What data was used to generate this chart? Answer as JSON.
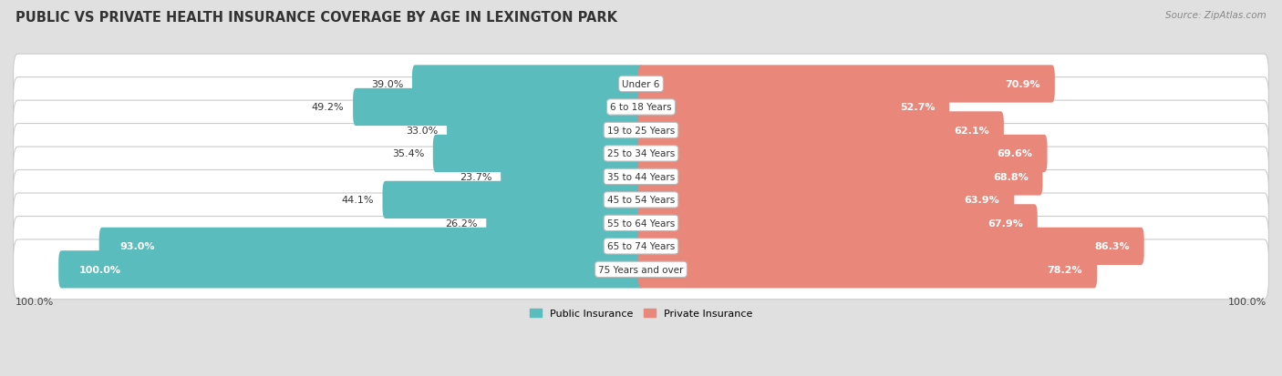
{
  "title": "PUBLIC VS PRIVATE HEALTH INSURANCE COVERAGE BY AGE IN LEXINGTON PARK",
  "source": "Source: ZipAtlas.com",
  "categories": [
    "Under 6",
    "6 to 18 Years",
    "19 to 25 Years",
    "25 to 34 Years",
    "35 to 44 Years",
    "45 to 54 Years",
    "55 to 64 Years",
    "65 to 74 Years",
    "75 Years and over"
  ],
  "public": [
    39.0,
    49.2,
    33.0,
    35.4,
    23.7,
    44.1,
    26.2,
    93.0,
    100.0
  ],
  "private": [
    70.9,
    52.7,
    62.1,
    69.6,
    68.8,
    63.9,
    67.9,
    86.3,
    78.2
  ],
  "public_color": "#5bbcbd",
  "private_color": "#e8877a",
  "bg_color": "#e0e0e0",
  "bar_height": 0.62,
  "max_value": 100.0,
  "title_fontsize": 10.5,
  "label_fontsize": 8,
  "category_fontsize": 7.5,
  "source_fontsize": 7.5,
  "axis_label": "100.0%"
}
